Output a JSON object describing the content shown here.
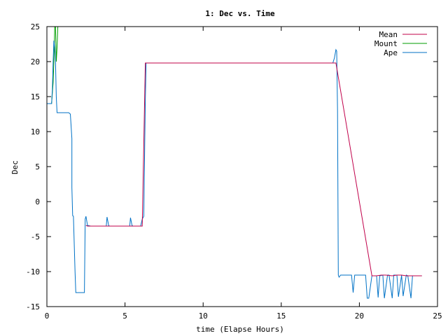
{
  "chart_data": {
    "type": "line",
    "title": "1: Dec vs. Time",
    "xlabel": "time (Elapse Hours)",
    "ylabel": "Dec",
    "xlim": [
      0,
      25
    ],
    "ylim": [
      -15,
      25
    ],
    "xticks": [
      0,
      5,
      10,
      15,
      20,
      25
    ],
    "yticks": [
      -15,
      -10,
      -5,
      0,
      5,
      10,
      15,
      20,
      25
    ],
    "xtick_labels": [
      "0",
      "5",
      "10",
      "15",
      "20",
      "25"
    ],
    "ytick_labels": [
      "-15",
      "-10",
      "-5",
      "0",
      "5",
      "10",
      "15",
      "20",
      "25"
    ],
    "grid": false,
    "legend_position": "top-right",
    "series": [
      {
        "name": "Mean",
        "color": "#c0004a",
        "x": [
          2.5,
          2.6,
          2.7,
          3.0,
          3.3,
          3.6,
          3.8,
          4.0,
          4.2,
          4.5,
          5.0,
          5.3,
          5.5,
          5.7,
          6.0,
          6.1,
          6.3,
          6.4,
          9.0,
          11.0,
          13.0,
          15.0,
          17.0,
          18.3,
          18.5,
          20.8,
          21.1,
          21.4,
          21.7,
          22.1,
          22.4,
          22.7,
          23.0,
          23.3,
          23.6,
          24.0
        ],
        "y": [
          -3.4,
          -3.5,
          -3.5,
          -3.5,
          -3.5,
          -3.5,
          -3.5,
          -3.5,
          -3.5,
          -3.5,
          -3.5,
          -3.5,
          -3.5,
          -3.5,
          -3.5,
          -3.5,
          19.8,
          19.8,
          19.8,
          19.8,
          19.8,
          19.8,
          19.8,
          19.8,
          19.8,
          -10.6,
          -10.6,
          -10.5,
          -10.5,
          -10.6,
          -10.5,
          -10.5,
          -10.6,
          -10.6,
          -10.6,
          -10.6
        ]
      },
      {
        "name": "Mount",
        "color": "#009e00",
        "x": [
          0.0,
          0.3,
          0.4,
          0.45,
          0.5,
          0.55,
          0.6,
          0.65,
          0.7
        ],
        "y": [
          14.0,
          14.0,
          17.0,
          20.0,
          25.0,
          25.0,
          20.0,
          22.0,
          25.0
        ]
      },
      {
        "name": "Ape",
        "color": "#0072c6",
        "x": [
          0.0,
          0.3,
          0.35,
          0.4,
          0.45,
          0.5,
          0.55,
          0.6,
          0.65,
          0.7,
          1.4,
          1.5,
          1.6,
          1.6,
          1.65,
          1.7,
          1.8,
          1.85,
          2.4,
          2.45,
          2.5,
          2.6,
          2.8,
          3.8,
          3.85,
          3.95,
          4.0,
          5.3,
          5.35,
          5.45,
          5.5,
          6.0,
          6.1,
          6.2,
          6.3,
          6.35,
          6.4,
          18.3,
          18.4,
          18.5,
          18.55,
          18.6,
          18.65,
          18.7,
          18.8,
          19.0,
          19.5,
          19.6,
          19.7,
          19.8,
          20.4,
          20.5,
          20.6,
          20.8,
          21.1,
          21.2,
          21.3,
          21.5,
          21.6,
          21.8,
          21.9,
          22.1,
          22.2,
          22.4,
          22.5,
          22.7,
          22.8,
          23.0,
          23.1,
          23.3,
          23.4,
          23.6,
          23.7,
          24.0
        ],
        "y": [
          14.0,
          14.0,
          16.0,
          20.0,
          23.0,
          22.0,
          20.0,
          15.0,
          12.7,
          12.7,
          12.7,
          12.5,
          9.0,
          2.0,
          -2.0,
          -2.1,
          -10.0,
          -13.0,
          -13.0,
          -2.5,
          -2.1,
          -3.4,
          -3.5,
          -3.5,
          -2.2,
          -3.4,
          -3.5,
          -3.5,
          -2.3,
          -3.4,
          -3.5,
          -3.5,
          -2.5,
          -2.1,
          14.5,
          19.8,
          19.8,
          19.8,
          20.5,
          21.7,
          21.5,
          13.0,
          -10.5,
          -10.8,
          -10.5,
          -10.5,
          -10.5,
          -13.0,
          -10.5,
          -10.5,
          -10.5,
          -13.8,
          -13.8,
          -10.6,
          -10.6,
          -13.7,
          -10.6,
          -10.5,
          -13.8,
          -10.5,
          -10.5,
          -13.8,
          -10.5,
          -10.5,
          -13.6,
          -10.5,
          -13.5,
          -10.5,
          -10.6,
          -13.8,
          -10.6,
          -10.6,
          -10.6,
          -10.6
        ]
      }
    ]
  }
}
